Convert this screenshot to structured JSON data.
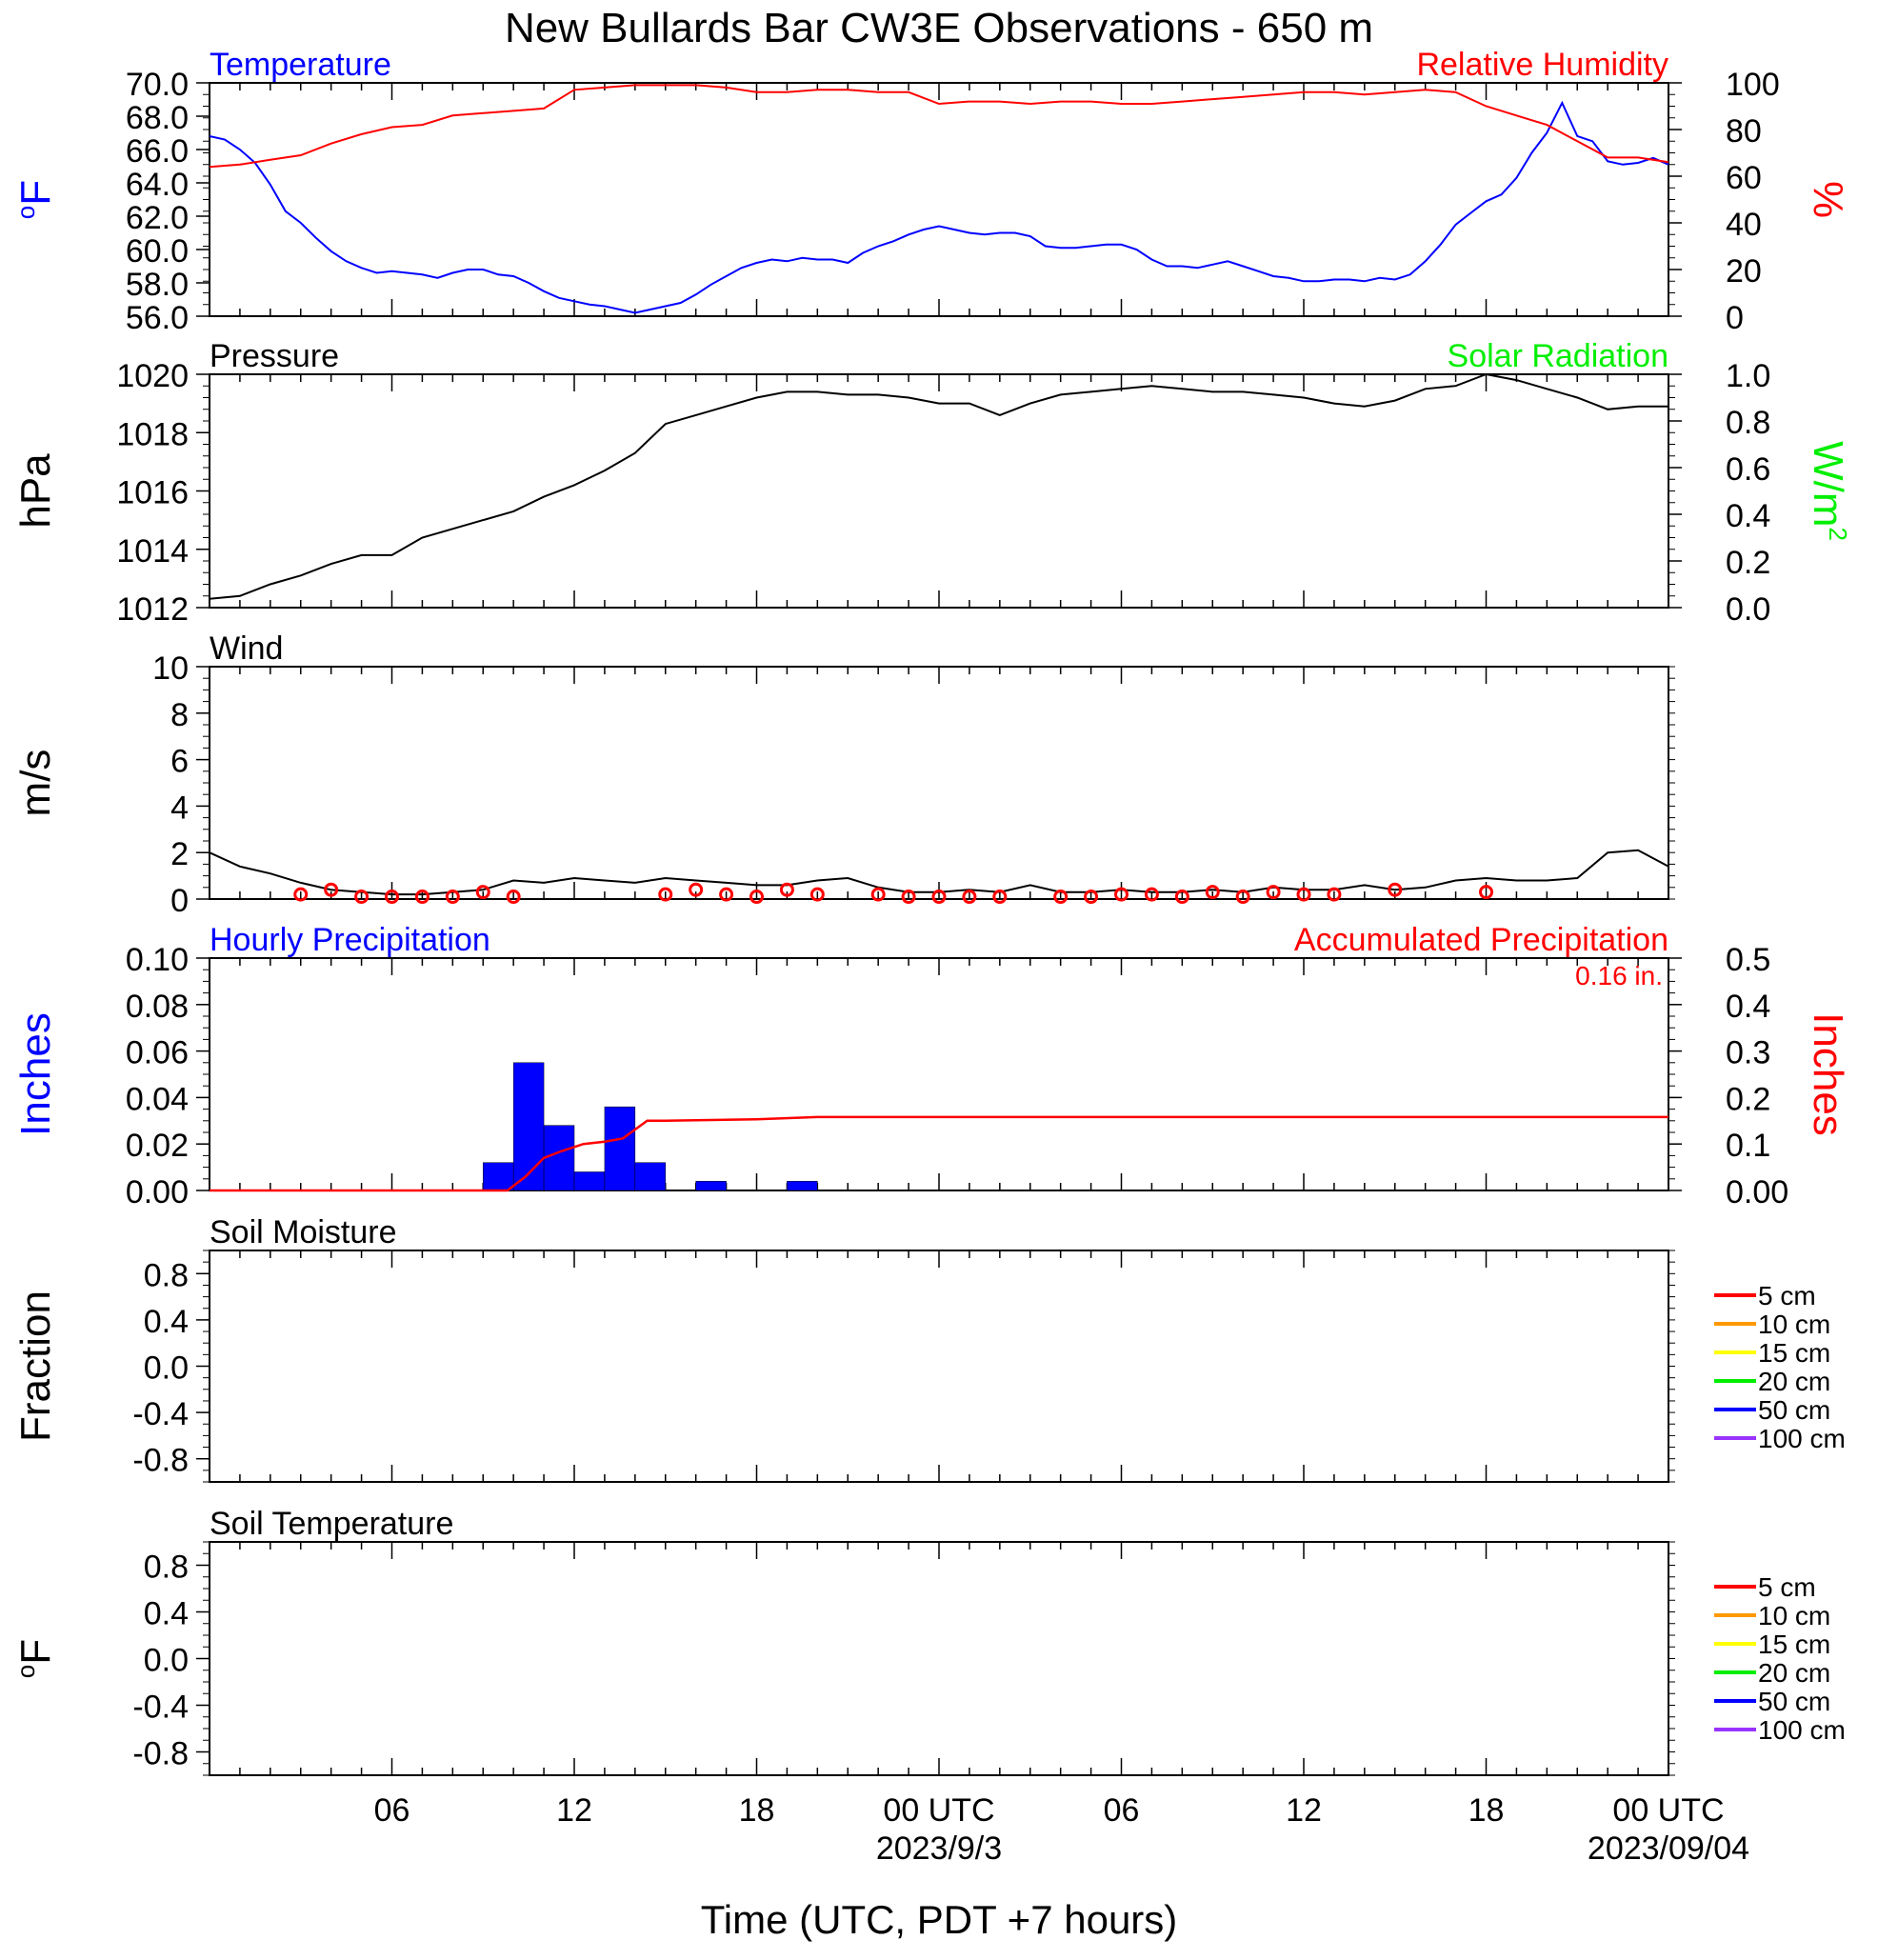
{
  "title": "New Bullards Bar CW3E Observations - 650 m",
  "xaxis": {
    "title": "Time (UTC, PDT +7 hours)",
    "tick_labels": [
      "06",
      "12",
      "18",
      "00 UTC",
      "06",
      "12",
      "18",
      "00 UTC"
    ],
    "date_labels": [
      "2023/9/3",
      "2023/09/04"
    ]
  },
  "colors": {
    "blue": "#0000ff",
    "red": "#ff0000",
    "green": "#00ee00",
    "black": "#000000"
  },
  "chart_data": [
    {
      "type": "line",
      "title_left": "Temperature",
      "title_right": "Relative Humidity",
      "ylabel_left": "oF",
      "ylabel_right": "%",
      "ylim_left": [
        56,
        70
      ],
      "ylim_right": [
        0,
        100
      ],
      "yticks_left": [
        "70.0",
        "68.0",
        "66.0",
        "64.0",
        "62.0",
        "60.0",
        "58.0",
        "56.0"
      ],
      "yticks_right": [
        "100",
        "80",
        "60",
        "40",
        "20",
        "0"
      ],
      "x_unit": "hours since 2023-09-02 00 UTC",
      "series": [
        {
          "name": "Temperature",
          "axis": "left",
          "color": "#0000ff",
          "x": [
            0,
            0.5,
            1,
            1.5,
            2,
            2.5,
            3,
            3.5,
            4,
            4.5,
            5,
            5.5,
            6,
            6.5,
            7,
            7.5,
            8,
            8.5,
            9,
            9.5,
            10,
            10.5,
            11,
            11.5,
            12,
            12.5,
            13,
            13.5,
            14,
            14.5,
            15,
            15.5,
            16,
            16.5,
            17,
            17.5,
            18,
            18.5,
            19,
            19.5,
            20,
            20.5,
            21,
            21.5,
            22,
            22.5,
            23,
            23.5,
            24,
            24.5,
            25,
            25.5,
            26,
            26.5,
            27,
            27.5,
            28,
            28.5,
            29,
            29.5,
            30,
            30.5,
            31,
            31.5,
            32,
            32.5,
            33,
            33.5,
            34,
            34.5,
            35,
            35.5,
            36,
            36.5,
            37,
            37.5,
            38,
            38.5,
            39,
            39.5,
            40,
            40.5,
            41,
            41.5,
            42,
            42.5,
            43,
            43.5,
            44,
            44.5,
            45,
            45.5,
            46,
            46.5,
            47,
            47.5,
            48
          ],
          "y": [
            66.8,
            66.6,
            66.0,
            65.2,
            63.9,
            62.3,
            61.6,
            60.7,
            59.9,
            59.3,
            58.9,
            58.6,
            58.7,
            58.6,
            58.5,
            58.3,
            58.6,
            58.8,
            58.8,
            58.5,
            58.4,
            58.0,
            57.5,
            57.1,
            56.9,
            56.7,
            56.6,
            56.4,
            56.2,
            56.4,
            56.6,
            56.8,
            57.3,
            57.9,
            58.4,
            58.9,
            59.2,
            59.4,
            59.3,
            59.5,
            59.4,
            59.4,
            59.2,
            59.8,
            60.2,
            60.5,
            60.9,
            61.2,
            61.4,
            61.2,
            61.0,
            60.9,
            61.0,
            61.0,
            60.8,
            60.2,
            60.1,
            60.1,
            60.2,
            60.3,
            60.3,
            60.0,
            59.4,
            59.0,
            59.0,
            58.9,
            59.1,
            59.3,
            59.0,
            58.7,
            58.4,
            58.3,
            58.1,
            58.1,
            58.2,
            58.2,
            58.1,
            58.3,
            58.2,
            58.5,
            59.3,
            60.3,
            61.5,
            62.2,
            62.9,
            63.3,
            64.3,
            65.8,
            67.0,
            68.8,
            66.8,
            66.5,
            65.3,
            65.1,
            65.2,
            65.5,
            65.1
          ]
        },
        {
          "name": "Relative Humidity",
          "axis": "right",
          "color": "#ff0000",
          "x": [
            0,
            1,
            2,
            3,
            4,
            5,
            6,
            7,
            8,
            9,
            10,
            11,
            12,
            13,
            14,
            15,
            16,
            17,
            18,
            19,
            20,
            21,
            22,
            23,
            24,
            25,
            26,
            27,
            28,
            29,
            30,
            31,
            32,
            33,
            34,
            35,
            36,
            37,
            38,
            39,
            40,
            41,
            42,
            43,
            44,
            45,
            46,
            47,
            48
          ],
          "y": [
            64,
            65,
            67,
            69,
            74,
            78,
            81,
            82,
            86,
            87,
            88,
            89,
            97,
            98,
            99,
            99,
            99,
            98,
            96,
            96,
            97,
            97,
            96,
            96,
            91,
            92,
            92,
            91,
            92,
            92,
            91,
            91,
            92,
            93,
            94,
            95,
            96,
            96,
            95,
            96,
            97,
            96,
            90,
            86,
            82,
            75,
            68,
            68,
            66
          ]
        }
      ]
    },
    {
      "type": "line",
      "title_left": "Pressure",
      "title_right": "Solar Radiation",
      "ylabel_left": "hPa",
      "ylabel_right": "W/m2",
      "ylim_left": [
        1012,
        1020
      ],
      "ylim_right": [
        0.0,
        1.0
      ],
      "yticks_left": [
        "1020",
        "1018",
        "1016",
        "1014",
        "1012"
      ],
      "yticks_right": [
        "1.0",
        "0.8",
        "0.6",
        "0.4",
        "0.2",
        "0.0"
      ],
      "series": [
        {
          "name": "Pressure",
          "axis": "left",
          "color": "#000000",
          "x": [
            0,
            1,
            2,
            3,
            4,
            5,
            6,
            7,
            8,
            9,
            10,
            11,
            12,
            13,
            14,
            15,
            16,
            17,
            18,
            19,
            20,
            21,
            22,
            23,
            24,
            25,
            26,
            27,
            28,
            29,
            30,
            31,
            32,
            33,
            34,
            35,
            36,
            37,
            38,
            39,
            40,
            41,
            42,
            43,
            44,
            45,
            46,
            47,
            48
          ],
          "y": [
            1012.3,
            1012.4,
            1012.8,
            1013.1,
            1013.5,
            1013.8,
            1013.8,
            1014.4,
            1014.7,
            1015.0,
            1015.3,
            1015.8,
            1016.2,
            1016.7,
            1017.3,
            1018.3,
            1018.6,
            1018.9,
            1019.2,
            1019.4,
            1019.4,
            1019.3,
            1019.3,
            1019.2,
            1019.0,
            1019.0,
            1018.6,
            1019.0,
            1019.3,
            1019.4,
            1019.5,
            1019.6,
            1019.5,
            1019.4,
            1019.4,
            1019.3,
            1019.2,
            1019.0,
            1018.9,
            1019.1,
            1019.5,
            1019.6,
            1020.0,
            1019.8,
            1019.5,
            1019.2,
            1018.8,
            1018.9,
            1018.9
          ]
        }
      ]
    },
    {
      "type": "line",
      "title_left": "Wind",
      "ylabel_left": "m/s",
      "ylim_left": [
        0,
        10
      ],
      "yticks_left": [
        "10",
        "8",
        "6",
        "4",
        "2",
        "0"
      ],
      "series": [
        {
          "name": "Wind",
          "axis": "left",
          "color": "#000000",
          "x": [
            0,
            1,
            2,
            3,
            4,
            5,
            6,
            7,
            8,
            9,
            10,
            11,
            12,
            13,
            14,
            15,
            16,
            17,
            18,
            19,
            20,
            21,
            22,
            23,
            24,
            25,
            26,
            27,
            28,
            29,
            30,
            31,
            32,
            33,
            34,
            35,
            36,
            37,
            38,
            39,
            40,
            41,
            42,
            43,
            44,
            45,
            46,
            47,
            48
          ],
          "y": [
            2.0,
            1.4,
            1.1,
            0.7,
            0.4,
            0.3,
            0.2,
            0.2,
            0.3,
            0.4,
            0.8,
            0.7,
            0.9,
            0.8,
            0.7,
            0.9,
            0.8,
            0.7,
            0.6,
            0.6,
            0.8,
            0.9,
            0.5,
            0.3,
            0.3,
            0.4,
            0.3,
            0.6,
            0.3,
            0.3,
            0.4,
            0.3,
            0.3,
            0.4,
            0.3,
            0.5,
            0.4,
            0.4,
            0.6,
            0.4,
            0.5,
            0.8,
            0.9,
            0.8,
            0.8,
            0.9,
            2.0,
            2.1,
            1.4
          ]
        }
      ],
      "wind_circles_x": [
        3,
        4,
        5,
        6,
        7,
        8,
        9,
        10,
        15,
        16,
        17,
        18,
        19,
        20,
        22,
        23,
        24,
        25,
        26,
        28,
        29,
        30,
        31,
        32,
        33,
        34,
        35,
        36,
        37,
        39,
        42
      ],
      "wind_circles_y": [
        0.2,
        0.4,
        0.1,
        0.1,
        0.1,
        0.1,
        0.3,
        0.1,
        0.2,
        0.4,
        0.2,
        0.1,
        0.4,
        0.2,
        0.2,
        0.1,
        0.1,
        0.1,
        0.1,
        0.1,
        0.1,
        0.2,
        0.2,
        0.1,
        0.3,
        0.1,
        0.3,
        0.2,
        0.2,
        0.4,
        0.3
      ]
    },
    {
      "type": "bar",
      "title_left": "Hourly Precipitation",
      "title_right": "Accumulated Precipitation",
      "total_label": "0.16 in.",
      "ylabel_left": "Inches",
      "ylabel_right": "Inches",
      "ylim_left": [
        0,
        0.1
      ],
      "ylim_right": [
        0,
        0.5
      ],
      "yticks_left": [
        "0.10",
        "0.08",
        "0.06",
        "0.04",
        "0.02",
        "0.00"
      ],
      "yticks_right": [
        "0.5",
        "0.4",
        "0.3",
        "0.2",
        "0.1",
        "0.00"
      ],
      "bars_x": [
        9,
        10,
        11,
        12,
        13,
        14,
        16,
        19
      ],
      "bars_y": [
        0.012,
        0.055,
        0.028,
        0.008,
        0.036,
        0.012,
        0.004,
        0.004
      ],
      "accum_x": [
        0,
        9.8,
        10.4,
        11,
        11.6,
        12.3,
        13,
        13.6,
        14.4,
        15,
        18,
        20,
        48
      ],
      "accum_y": [
        0,
        0,
        0.03,
        0.07,
        0.085,
        0.1,
        0.105,
        0.112,
        0.15,
        0.15,
        0.153,
        0.158,
        0.158
      ]
    },
    {
      "type": "line",
      "title_left": "Soil Moisture",
      "ylabel_left": "Fraction",
      "ylim_left": [
        -1,
        1
      ],
      "yticks_left": [
        "0.8",
        "0.4",
        "0.0",
        "-0.4",
        "-0.8"
      ],
      "legend": [
        "5 cm",
        "10 cm",
        "15 cm",
        "20 cm",
        "50 cm",
        "100 cm"
      ],
      "legend_colors": [
        "#ff0000",
        "#ff9900",
        "#ffff00",
        "#00ee00",
        "#0000ff",
        "#9933ff"
      ],
      "series": []
    },
    {
      "type": "line",
      "title_left": "Soil Temperature",
      "ylabel_left": "oF",
      "ylim_left": [
        -1,
        1
      ],
      "yticks_left": [
        "0.8",
        "0.4",
        "0.0",
        "-0.4",
        "-0.8"
      ],
      "legend": [
        "5 cm",
        "10 cm",
        "15 cm",
        "20 cm",
        "50 cm",
        "100 cm"
      ],
      "legend_colors": [
        "#ff0000",
        "#ff9900",
        "#ffff00",
        "#00ee00",
        "#0000ff",
        "#9933ff"
      ],
      "series": []
    }
  ]
}
